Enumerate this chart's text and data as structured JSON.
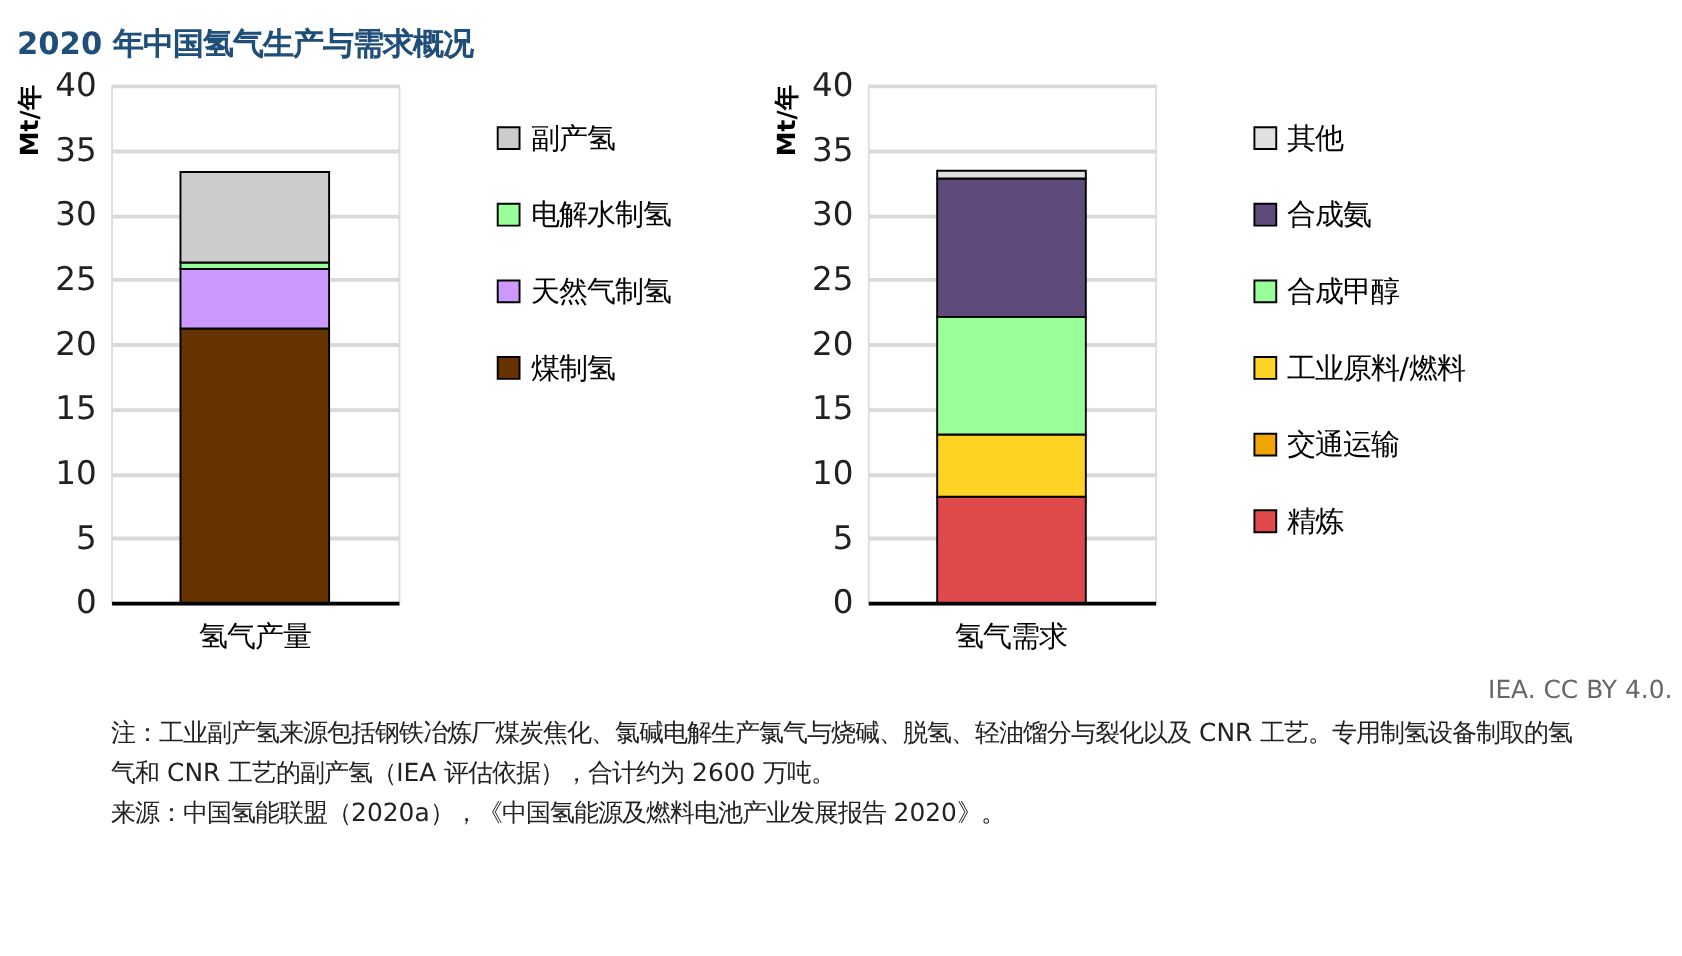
{
  "chart_data": [
    {
      "type": "bar",
      "title": "2020 年中国氢气生产与需求概况",
      "categories": [
        "氢气产量"
      ],
      "stacked": true,
      "ylabel": "Mt/年",
      "ylim": [
        0,
        40
      ],
      "yticks": [
        0,
        5,
        10,
        15,
        20,
        25,
        30,
        35,
        40
      ],
      "grid": "y",
      "legend": "right",
      "series": [
        {
          "name": "煤制氢",
          "color": "#663300",
          "values": [
            21.2
          ]
        },
        {
          "name": "天然气制氢",
          "color": "#cc99ff",
          "values": [
            4.6
          ]
        },
        {
          "name": "电解水制氢",
          "color": "#99ff99",
          "values": [
            0.5
          ]
        },
        {
          "name": "副产氢",
          "color": "#cccccc",
          "values": [
            7.0
          ]
        }
      ]
    },
    {
      "type": "bar",
      "categories": [
        "氢气需求"
      ],
      "stacked": true,
      "ylabel": "Mt/年",
      "ylim": [
        0,
        40
      ],
      "yticks": [
        0,
        5,
        10,
        15,
        20,
        25,
        30,
        35,
        40
      ],
      "grid": "y",
      "legend": "right",
      "annotations": [
        "IEA. CC BY 4.0.",
        "注：工业副产氢来源包括钢铁冶炼厂煤炭焦化、氯碱电解生产氯气与烧碱、脱氢、轻油馏分与裂化以及 CNR 工艺。专用制氢设备制取的氢气和 CNR 工艺的副产氢（IEA 评估依据），合计约为 2600 万吨。",
        "来源：中国氢能联盟（2020a），《中国氢能源及燃料电池产业发展报告 2020》。"
      ],
      "series": [
        {
          "name": "精炼",
          "color": "#e04a4a",
          "values": [
            8.2
          ]
        },
        {
          "name": "交通运输",
          "color": "#f0a500",
          "values": [
            0
          ]
        },
        {
          "name": "工业原料/燃料",
          "color": "#ffd324",
          "values": [
            4.8
          ]
        },
        {
          "name": "合成甲醇",
          "color": "#99ff99",
          "values": [
            9.1
          ]
        },
        {
          "name": "合成氨",
          "color": "#5f4b7b",
          "values": [
            10.7
          ]
        },
        {
          "name": "其他",
          "color": "#e0e0e0",
          "values": [
            0.6
          ]
        }
      ]
    }
  ]
}
